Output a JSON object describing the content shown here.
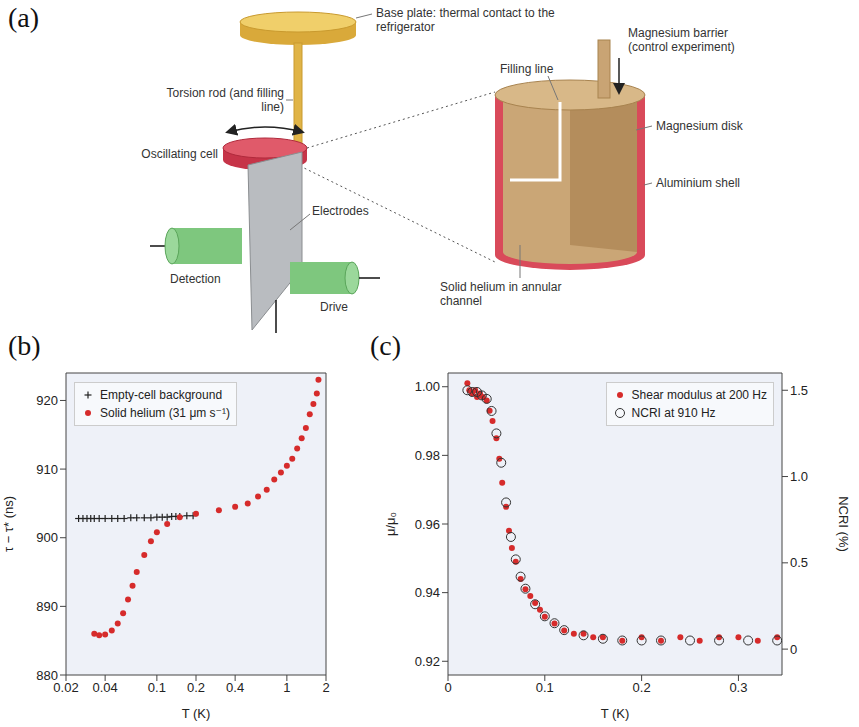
{
  "diagram": {
    "label": "(a)",
    "labels": {
      "base_plate": "Base plate: thermal contact to the refrigerator",
      "torsion_rod": "Torsion rod (and filling line)",
      "oscillating_cell": "Oscillating cell",
      "electrodes": "Electrodes",
      "detection": "Detection",
      "drive": "Drive",
      "magnesium_barrier": "Magnesium barrier (control experiment)",
      "filling_line": "Filling line",
      "magnesium_disk": "Magnesium disk",
      "aluminium_shell": "Aluminium shell",
      "solid_helium": "Solid helium in annular channel"
    }
  },
  "chart_data": [
    {
      "label": "(b)",
      "type": "scatter",
      "x_label": "T (K)",
      "y_label": "τ − τ* (ns)",
      "log": "x",
      "xlim": [
        0.02,
        2
      ],
      "xticks": [
        0.02,
        0.04,
        0.1,
        0.2,
        0.4,
        1,
        2
      ],
      "ylim": [
        880,
        924
      ],
      "yticks": [
        880,
        890,
        900,
        910,
        920
      ],
      "legend": "upper left",
      "series": [
        {
          "name": "Empty-cell background",
          "color": "#222222",
          "marker": "plus",
          "x": [
            0.025,
            0.027,
            0.029,
            0.031,
            0.033,
            0.036,
            0.04,
            0.045,
            0.05,
            0.056,
            0.063,
            0.07,
            0.08,
            0.09,
            0.1,
            0.11,
            0.12,
            0.13,
            0.14,
            0.15,
            0.17,
            0.19
          ],
          "values": [
            902.8,
            902.8,
            902.8,
            902.8,
            902.8,
            902.8,
            902.8,
            902.8,
            902.8,
            902.8,
            902.9,
            902.9,
            902.9,
            902.9,
            903,
            903,
            903,
            903.1,
            903.1,
            903.1,
            903.2,
            903.2
          ]
        },
        {
          "name": "Solid helium (31 μm s⁻¹)",
          "color": "#d62b2b",
          "marker": "circle",
          "x": [
            0.033,
            0.036,
            0.04,
            0.045,
            0.05,
            0.055,
            0.06,
            0.065,
            0.07,
            0.08,
            0.09,
            0.1,
            0.12,
            0.15,
            0.2,
            0.3,
            0.4,
            0.5,
            0.6,
            0.7,
            0.8,
            0.9,
            1.0,
            1.1,
            1.2,
            1.3,
            1.4,
            1.5,
            1.6,
            1.7,
            1.75
          ],
          "values": [
            886,
            885.8,
            885.9,
            886.5,
            887.5,
            889,
            891,
            893,
            895,
            897.5,
            899.5,
            900.8,
            902,
            903,
            903.5,
            904,
            904.5,
            905,
            906,
            907,
            908.5,
            909.5,
            910.5,
            911.5,
            913,
            914.5,
            916,
            918,
            919.5,
            921,
            923
          ]
        }
      ]
    },
    {
      "label": "(c)",
      "type": "scatter",
      "x_label": "T (K)",
      "y_label": "μ/μ₀",
      "y2_label": "NCRI (%)",
      "xlim": [
        0,
        0.345
      ],
      "xticks": [
        0,
        0.1,
        0.2,
        0.3
      ],
      "ylim": [
        0.916,
        1.004
      ],
      "yticks": [
        0.92,
        0.94,
        0.96,
        0.98,
        {
          "value": 1,
          "label": "1.00"
        }
      ],
      "y2lim": [
        -0.15,
        1.6
      ],
      "y2ticks": [
        0,
        0.5,
        {
          "value": 1,
          "label": "1.0"
        },
        1.5
      ],
      "legend": "upper right",
      "series": [
        {
          "name": "Shear modulus at 200 Hz",
          "color": "#d62b2b",
          "marker": "circle",
          "x": [
            0.02,
            0.022,
            0.025,
            0.028,
            0.03,
            0.033,
            0.036,
            0.04,
            0.043,
            0.046,
            0.05,
            0.053,
            0.056,
            0.06,
            0.063,
            0.066,
            0.07,
            0.075,
            0.08,
            0.085,
            0.09,
            0.095,
            0.1,
            0.11,
            0.12,
            0.13,
            0.14,
            0.15,
            0.16,
            0.18,
            0.2,
            0.22,
            0.24,
            0.26,
            0.28,
            0.3,
            0.32,
            0.34
          ],
          "values": [
            1.001,
            0.999,
            0.998,
            0.999,
            0.997,
            0.998,
            0.997,
            0.996,
            0.993,
            0.99,
            0.985,
            0.979,
            0.972,
            0.965,
            0.958,
            0.953,
            0.949,
            0.944,
            0.941,
            0.939,
            0.937,
            0.935,
            0.933,
            0.931,
            0.929,
            0.928,
            0.928,
            0.927,
            0.927,
            0.926,
            0.927,
            0.926,
            0.927,
            0.926,
            0.927,
            0.927,
            0.926,
            0.927
          ]
        },
        {
          "name": "NCRI at 910 Hz",
          "color": "#333333",
          "marker": "open_circle",
          "axis": "y2",
          "x": [
            0.02,
            0.025,
            0.03,
            0.035,
            0.04,
            0.045,
            0.05,
            0.055,
            0.06,
            0.065,
            0.07,
            0.075,
            0.08,
            0.09,
            0.1,
            0.11,
            0.12,
            0.14,
            0.16,
            0.18,
            0.2,
            0.22,
            0.25,
            0.28,
            0.31,
            0.34
          ],
          "values": [
            1.5,
            1.49,
            1.49,
            1.47,
            1.45,
            1.38,
            1.25,
            1.08,
            0.85,
            0.65,
            0.52,
            0.42,
            0.35,
            0.26,
            0.19,
            0.15,
            0.11,
            0.08,
            0.06,
            0.05,
            0.05,
            0.05,
            0.05,
            0.05,
            0.05,
            0.05
          ]
        }
      ]
    }
  ]
}
